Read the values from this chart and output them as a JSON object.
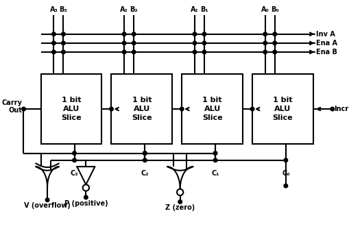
{
  "fig_w": 5.1,
  "fig_h": 3.4,
  "dpi": 100,
  "lw": 1.5,
  "slice_labels": [
    "1 bit\nALU\nSlice",
    "1 bit\nALU\nSlice",
    "1 bit\nALU\nSlice",
    "1 bit\nALU\nSlice"
  ],
  "ab_top_labels": [
    [
      "A₃",
      "B₃"
    ],
    [
      "A₂",
      "B₂"
    ],
    [
      "A₁",
      "B₁"
    ],
    [
      "A₀",
      "B₀"
    ]
  ],
  "carry_labels": [
    "C₃",
    "C₂",
    "C₁",
    "C₀"
  ],
  "bus_labels": [
    "Inv A",
    "Ena A",
    "Ena B"
  ],
  "incr_label": "Incr",
  "carry_out_label": "Carry\nOut",
  "v_label": "V (overflow)",
  "p_label": "P (positive)",
  "z_label": "Z (zero)"
}
